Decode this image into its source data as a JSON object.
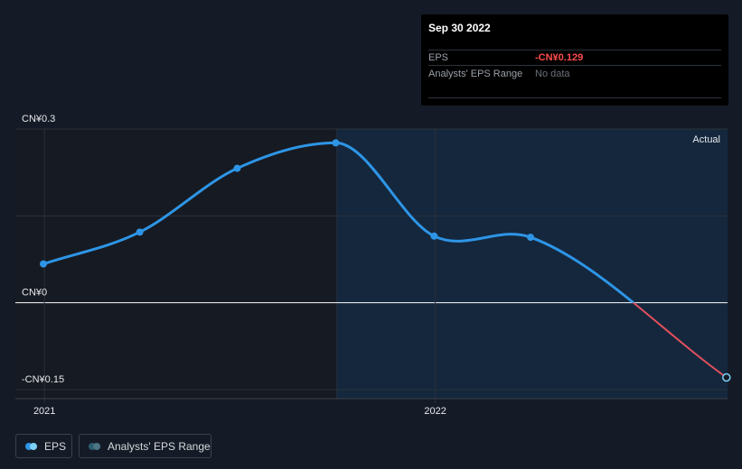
{
  "tooltip": {
    "date": "Sep 30 2022",
    "eps_label": "EPS",
    "eps_value": "-CN¥0.129",
    "range_label": "Analysts' EPS Range",
    "range_value": "No data"
  },
  "actual_label": "Actual",
  "legend": {
    "eps_label": "EPS",
    "range_label": "Analysts' EPS Range"
  },
  "colors": {
    "background": "#151b26",
    "eps_line": "#2e95e6",
    "negative_line": "#e0505c",
    "actual_region": "#14273d",
    "tooltip_negative": "#ff4d4d"
  },
  "chart_data": {
    "type": "line",
    "title": "",
    "xlabel": "",
    "ylabel": "",
    "ylim": [
      -0.15,
      0.3
    ],
    "y_ticks": [
      {
        "value": 0.3,
        "label": "CN¥0.3"
      },
      {
        "value": 0,
        "label": "CN¥0"
      },
      {
        "value": -0.15,
        "label": "-CN¥0.15"
      }
    ],
    "x_ticks": [
      {
        "value": "2021-01-01",
        "label": "2021"
      },
      {
        "value": "2022-01-01",
        "label": "2022"
      }
    ],
    "x_range": [
      "2020-12-31",
      "2022-10-01"
    ],
    "actual_start": "2021-10-01",
    "series": [
      {
        "name": "EPS",
        "points": [
          {
            "date": "2020-12-31",
            "value": 0.067
          },
          {
            "date": "2021-03-31",
            "value": 0.122
          },
          {
            "date": "2021-06-30",
            "value": 0.232
          },
          {
            "date": "2021-09-30",
            "value": 0.276
          },
          {
            "date": "2021-12-31",
            "value": 0.115
          },
          {
            "date": "2022-03-31",
            "value": 0.113
          },
          {
            "date": "2022-09-30",
            "value": -0.129
          }
        ]
      }
    ]
  }
}
